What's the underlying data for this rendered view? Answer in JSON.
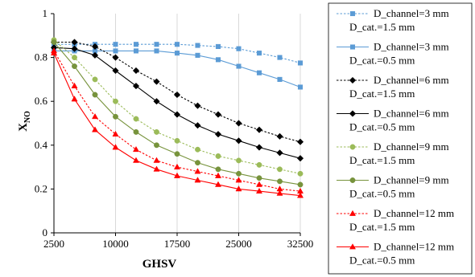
{
  "chart_data": {
    "type": "line",
    "xlabel": "GHSV",
    "ylabel_main": "X",
    "ylabel_sub": "NO",
    "xlim": [
      2500,
      32500
    ],
    "ylim": [
      0,
      1
    ],
    "x_ticks": [
      2500,
      10000,
      17500,
      25000,
      32500
    ],
    "y_ticks": [
      0,
      0.2,
      0.4,
      0.6,
      0.8,
      1
    ],
    "y_tick_labels": [
      "0",
      "0.2",
      "0.4",
      "0.6",
      "0.8",
      "1"
    ],
    "grid": "vertical",
    "legend_position": "right",
    "x": [
      2500,
      5000,
      7500,
      10000,
      12500,
      15000,
      17500,
      20000,
      22500,
      25000,
      27500,
      30000,
      32500
    ],
    "series": [
      {
        "name": "D_channel=3 mm",
        "name2": "D_cat.=1.5 mm",
        "color": "#5b9bd5",
        "dashed": true,
        "marker": "square",
        "values": [
          0.86,
          0.86,
          0.86,
          0.86,
          0.86,
          0.86,
          0.86,
          0.855,
          0.85,
          0.84,
          0.82,
          0.8,
          0.775
        ]
      },
      {
        "name": "D_channel=3 mm",
        "name2": "D_cat.=0.5 mm",
        "color": "#5b9bd5",
        "dashed": false,
        "marker": "square",
        "values": [
          0.83,
          0.83,
          0.83,
          0.83,
          0.83,
          0.83,
          0.82,
          0.81,
          0.79,
          0.76,
          0.73,
          0.7,
          0.665
        ]
      },
      {
        "name": "D_channel=6 mm",
        "name2": "D_cat.=1.5 mm",
        "color": "#000000",
        "dashed": true,
        "marker": "diamond",
        "values": [
          0.87,
          0.87,
          0.85,
          0.8,
          0.74,
          0.69,
          0.63,
          0.58,
          0.54,
          0.5,
          0.47,
          0.44,
          0.415
        ]
      },
      {
        "name": "D_channel=6 mm",
        "name2": "D_cat.=0.5 mm",
        "color": "#000000",
        "dashed": false,
        "marker": "diamond",
        "values": [
          0.845,
          0.84,
          0.81,
          0.74,
          0.67,
          0.6,
          0.54,
          0.49,
          0.45,
          0.42,
          0.39,
          0.365,
          0.34
        ]
      },
      {
        "name": "D_channel=9 mm",
        "name2": "D_cat.=1.5 mm",
        "color": "#9bbb59",
        "dashed": true,
        "marker": "circle",
        "values": [
          0.88,
          0.8,
          0.7,
          0.6,
          0.52,
          0.46,
          0.42,
          0.38,
          0.35,
          0.33,
          0.31,
          0.29,
          0.27
        ]
      },
      {
        "name": "D_channel=9 mm",
        "name2": "D_cat.=0.5 mm",
        "color": "#77933c",
        "dashed": false,
        "marker": "circle",
        "values": [
          0.87,
          0.76,
          0.63,
          0.53,
          0.46,
          0.4,
          0.36,
          0.32,
          0.29,
          0.27,
          0.25,
          0.235,
          0.22
        ]
      },
      {
        "name": "D_channel=12 mm",
        "name2": "D_cat.=1.5 mm",
        "color": "#ff0000",
        "dashed": true,
        "marker": "triangle",
        "values": [
          0.83,
          0.67,
          0.53,
          0.45,
          0.38,
          0.33,
          0.3,
          0.28,
          0.26,
          0.24,
          0.22,
          0.2,
          0.19
        ]
      },
      {
        "name": "D_channel=12 mm",
        "name2": "D_cat.=0.5 mm",
        "color": "#ff0000",
        "dashed": false,
        "marker": "triangle",
        "values": [
          0.82,
          0.61,
          0.47,
          0.39,
          0.33,
          0.29,
          0.26,
          0.24,
          0.22,
          0.2,
          0.19,
          0.18,
          0.17
        ]
      }
    ]
  }
}
